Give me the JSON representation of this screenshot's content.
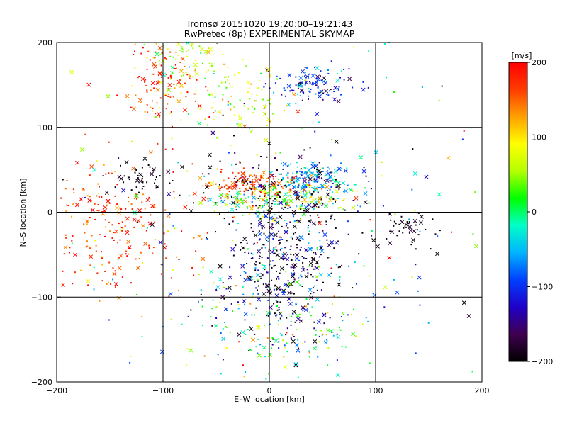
{
  "chart_data": {
    "type": "scatter",
    "title": "Tromsø 20151020 19:20:00–19:21:43",
    "subtitle": "RwPretec (8p) EXPERIMENTAL SKYMAP",
    "xlabel": "E–W location [km]",
    "ylabel": "N–S location [km]",
    "xlim": [
      -200,
      200
    ],
    "ylim": [
      -200,
      200
    ],
    "xticks": [
      -200,
      -100,
      0,
      100,
      200
    ],
    "yticks": [
      -200,
      -100,
      0,
      100,
      200
    ],
    "xtick_labels": [
      "−200",
      "−100",
      "0",
      "100",
      "200"
    ],
    "ytick_labels": [
      "−200",
      "−100",
      "0",
      "100",
      "200"
    ],
    "grid": true,
    "marker_types": [
      "dot",
      "x"
    ],
    "colorbar": {
      "label": "[m/s]",
      "min": -200,
      "max": 200,
      "ticks": [
        200,
        100,
        0,
        -100,
        -200
      ],
      "tick_labels": [
        "200",
        "100",
        "0",
        "−100",
        "−200"
      ],
      "colormap": [
        "#000000",
        "#400050",
        "#2000c8",
        "#0040ff",
        "#00b4ff",
        "#00ffc8",
        "#00ff00",
        "#b4ff00",
        "#ffff00",
        "#ffa000",
        "#ff3c00",
        "#ff0000"
      ],
      "placement": "right"
    },
    "clusters": [
      {
        "x": 40,
        "y": 150,
        "sx": 18,
        "sy": 10,
        "n": 120,
        "v": -100,
        "vs": 40
      },
      {
        "x": 40,
        "y": 40,
        "sx": 18,
        "sy": 9,
        "n": 140,
        "v": -60,
        "vs": 35
      },
      {
        "x": 15,
        "y": 15,
        "sx": 30,
        "sy": 10,
        "n": 240,
        "v": 30,
        "vs": 80
      },
      {
        "x": -20,
        "y": 35,
        "sx": 25,
        "sy": 8,
        "n": 130,
        "v": 170,
        "vs": 30
      },
      {
        "x": -100,
        "y": 150,
        "sx": 15,
        "sy": 30,
        "n": 120,
        "v": 160,
        "vs": 40
      },
      {
        "x": -80,
        "y": 180,
        "sx": 20,
        "sy": 15,
        "n": 60,
        "v": 60,
        "vs": 30
      },
      {
        "x": -30,
        "y": 130,
        "sx": 20,
        "sy": 25,
        "n": 90,
        "v": 70,
        "vs": 40
      },
      {
        "x": -150,
        "y": -20,
        "sx": 35,
        "sy": 45,
        "n": 230,
        "v": 170,
        "vs": 35
      },
      {
        "x": 10,
        "y": -60,
        "sx": 28,
        "sy": 40,
        "n": 380,
        "v": -160,
        "vs": 80
      },
      {
        "x": 10,
        "y": -130,
        "sx": 40,
        "sy": 30,
        "n": 170,
        "v": -20,
        "vs": 90
      },
      {
        "x": -120,
        "y": 40,
        "sx": 15,
        "sy": 10,
        "n": 50,
        "v": -190,
        "vs": 10
      },
      {
        "x": 130,
        "y": -20,
        "sx": 15,
        "sy": 10,
        "n": 45,
        "v": -190,
        "vs": 10
      },
      {
        "x": 10,
        "y": 20,
        "sx": 40,
        "sy": 30,
        "n": 120,
        "v": -180,
        "vs": 20
      },
      {
        "x": 0,
        "y": 0,
        "sx": 110,
        "sy": 110,
        "n": 260,
        "v": 0,
        "vs": 130
      }
    ]
  }
}
